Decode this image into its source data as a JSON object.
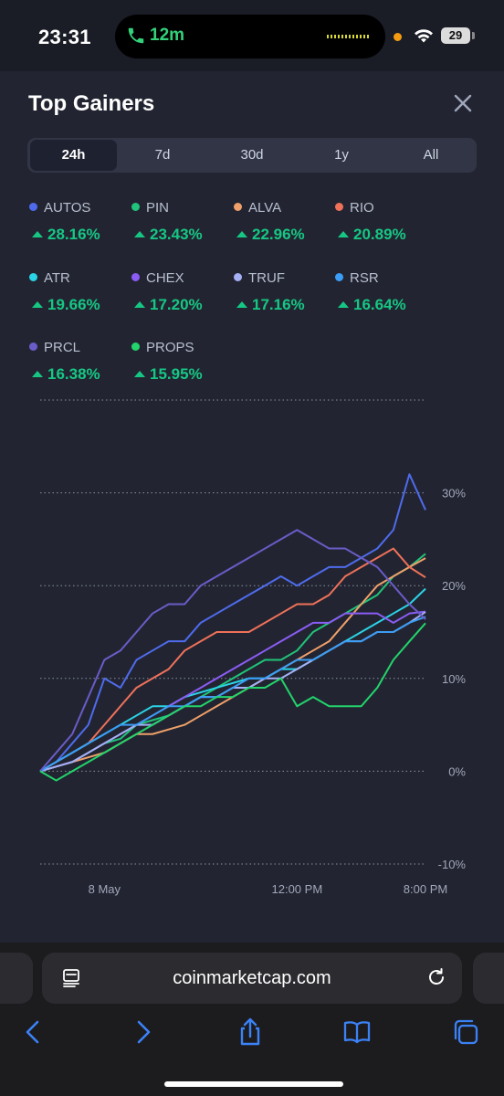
{
  "status_bar": {
    "time": "23:31",
    "call_duration": "12m",
    "battery": "29"
  },
  "panel": {
    "title": "Top Gainers",
    "tabs": [
      {
        "label": "24h",
        "active": true
      },
      {
        "label": "7d",
        "active": false
      },
      {
        "label": "30d",
        "active": false
      },
      {
        "label": "1y",
        "active": false
      },
      {
        "label": "All",
        "active": false
      }
    ]
  },
  "legend": [
    {
      "name": "AUTOS",
      "change": "28.16%",
      "color": "#4f6bed"
    },
    {
      "name": "PIN",
      "change": "23.43%",
      "color": "#20c47a"
    },
    {
      "name": "ALVA",
      "change": "22.96%",
      "color": "#f0a06a"
    },
    {
      "name": "RIO",
      "change": "20.89%",
      "color": "#f0715a"
    },
    {
      "name": "ATR",
      "change": "19.66%",
      "color": "#2ad4e6"
    },
    {
      "name": "CHEX",
      "change": "17.20%",
      "color": "#8b5cf6"
    },
    {
      "name": "TRUF",
      "change": "17.16%",
      "color": "#a5b0f5"
    },
    {
      "name": "RSR",
      "change": "16.64%",
      "color": "#3b9df5"
    },
    {
      "name": "PRCL",
      "change": "16.38%",
      "color": "#6a5cc9"
    },
    {
      "name": "PROPS",
      "change": "15.95%",
      "color": "#22d46b"
    }
  ],
  "chart_data": {
    "type": "line",
    "y_ticks": [
      "30%",
      "20%",
      "10%",
      "0%",
      "-10%"
    ],
    "y_tick_values": [
      30,
      20,
      10,
      0,
      -10
    ],
    "ylim": [
      -10,
      40
    ],
    "x_ticks": [
      "8 May",
      "12:00 PM",
      "8:00 PM"
    ],
    "x_tick_positions": [
      4,
      16,
      24
    ],
    "xlim": [
      0,
      24
    ],
    "grid": true,
    "x": [
      0,
      1,
      2,
      3,
      4,
      5,
      6,
      7,
      8,
      9,
      10,
      11,
      12,
      13,
      14,
      15,
      16,
      17,
      18,
      19,
      20,
      21,
      22,
      23,
      24
    ],
    "series": [
      {
        "name": "AUTOS",
        "color": "#4f6bed",
        "values": [
          0,
          1,
          3,
          5,
          10,
          9,
          12,
          13,
          14,
          14,
          16,
          17,
          18,
          19,
          20,
          21,
          20,
          21,
          22,
          22,
          23,
          24,
          26,
          32,
          28.16
        ]
      },
      {
        "name": "PIN",
        "color": "#20c47a",
        "values": [
          0,
          0.5,
          1,
          2,
          3,
          3.5,
          5,
          5.5,
          6,
          7,
          8,
          9,
          10,
          11,
          12,
          12,
          13,
          15,
          16,
          17,
          18,
          19,
          21,
          22,
          23.43
        ]
      },
      {
        "name": "ALVA",
        "color": "#f0a06a",
        "values": [
          0,
          0.5,
          1,
          1.5,
          2,
          3,
          4,
          4,
          4.5,
          5,
          6,
          7,
          8,
          9,
          10,
          11,
          12,
          13,
          14,
          16,
          18,
          20,
          21,
          22,
          22.96
        ]
      },
      {
        "name": "RIO",
        "color": "#f0715a",
        "values": [
          0,
          1,
          2,
          3,
          5,
          7,
          9,
          10,
          11,
          13,
          14,
          15,
          15,
          15,
          16,
          17,
          18,
          18,
          19,
          21,
          22,
          23,
          24,
          22,
          20.89
        ]
      },
      {
        "name": "ATR",
        "color": "#2ad4e6",
        "values": [
          0,
          1,
          2,
          3,
          4,
          5,
          6,
          7,
          7,
          8,
          8.5,
          9,
          9.5,
          10,
          10,
          11,
          11,
          12,
          13,
          14,
          15,
          16,
          17,
          18,
          19.66
        ]
      },
      {
        "name": "CHEX",
        "color": "#8b5cf6",
        "values": [
          0,
          0.5,
          1,
          2,
          3,
          4,
          5,
          6,
          7,
          8,
          9,
          10,
          11,
          12,
          13,
          14,
          15,
          16,
          16,
          17,
          17,
          17,
          16,
          17,
          17.2
        ]
      },
      {
        "name": "TRUF",
        "color": "#a5b0f5",
        "values": [
          0,
          0.5,
          1,
          2,
          3,
          4,
          5,
          5,
          6,
          7,
          8,
          8,
          9,
          9,
          10,
          10,
          11,
          12,
          13,
          14,
          14,
          15,
          15,
          16,
          17.16
        ]
      },
      {
        "name": "RSR",
        "color": "#3b9df5",
        "values": [
          0,
          1,
          2,
          3,
          4,
          5,
          5,
          6,
          7,
          7,
          8,
          8,
          9,
          10,
          10,
          11,
          12,
          12,
          13,
          14,
          14,
          15,
          15,
          16,
          16.64
        ]
      },
      {
        "name": "PRCL",
        "color": "#6a5cc9",
        "values": [
          0,
          2,
          4,
          8,
          12,
          13,
          15,
          17,
          18,
          18,
          20,
          21,
          22,
          23,
          24,
          25,
          26,
          25,
          24,
          24,
          23,
          22,
          20,
          18,
          16.38
        ]
      },
      {
        "name": "PROPS",
        "color": "#22d46b",
        "values": [
          0,
          -1,
          0,
          1,
          2,
          3,
          4,
          5,
          6,
          7,
          7,
          8,
          8,
          9,
          9,
          10,
          7,
          8,
          7,
          7,
          7,
          9,
          12,
          14,
          15.95
        ]
      }
    ]
  },
  "browser": {
    "url": "coinmarketcap.com"
  }
}
